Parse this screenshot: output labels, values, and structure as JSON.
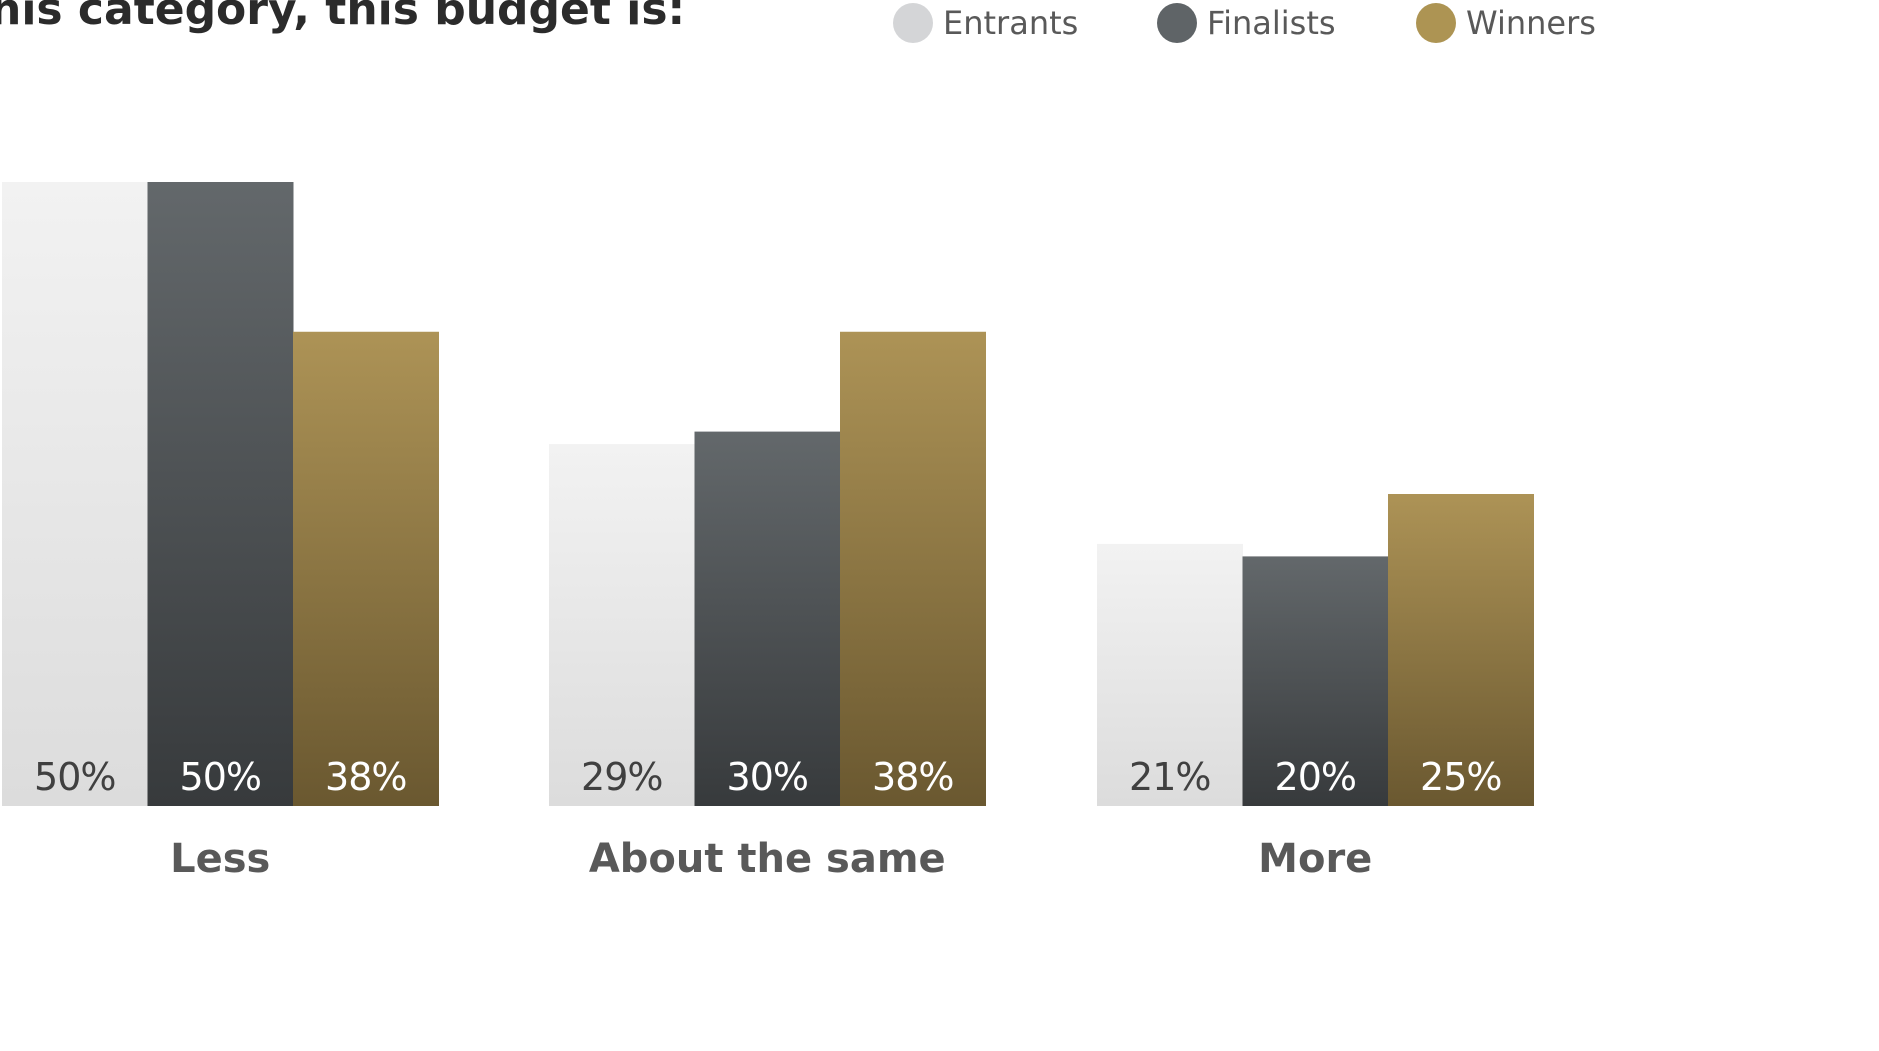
{
  "chart_data": {
    "type": "bar",
    "title": "his category, this budget is:",
    "categories": [
      "Less",
      "About the same",
      "More"
    ],
    "series": [
      {
        "name": "Entrants",
        "values": [
          50,
          29,
          21
        ],
        "color_top": "#f2f2f2",
        "color_bottom": "#dcdcdc",
        "label_color": "#404040",
        "legend_color": "#d4d5d7"
      },
      {
        "name": "Finalists",
        "values": [
          50,
          30,
          20
        ],
        "color_top": "#63686b",
        "color_bottom": "#373a3c",
        "label_color": "#ffffff",
        "legend_color": "#5f6467"
      },
      {
        "name": "Winners",
        "values": [
          38,
          38,
          25
        ],
        "color_top": "#ad9356",
        "color_bottom": "#6a5830",
        "label_color": "#ffffff",
        "legend_color": "#ad9453"
      }
    ],
    "value_suffix": "%",
    "ylim": [
      0,
      50
    ],
    "grid": false,
    "legend_position": "top-right"
  }
}
